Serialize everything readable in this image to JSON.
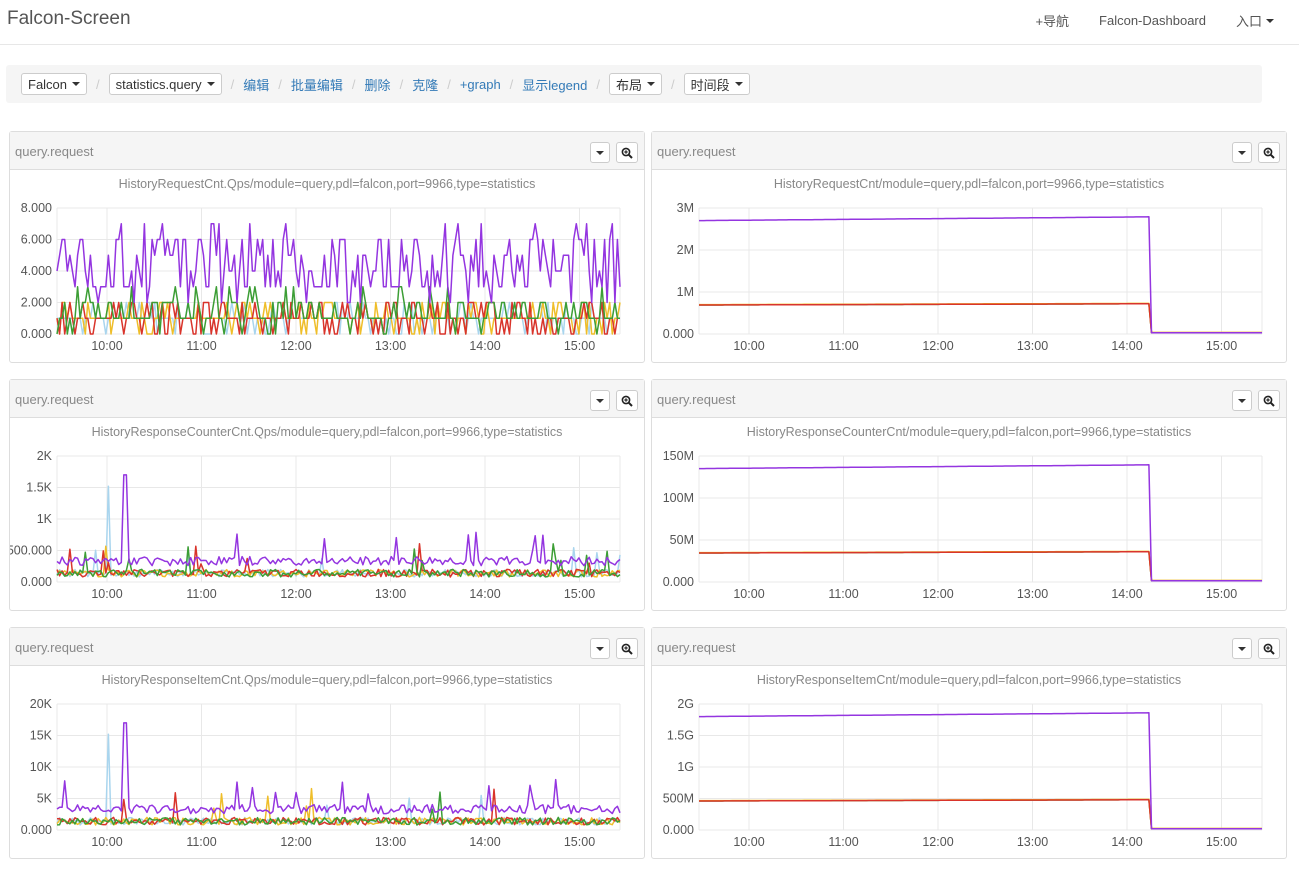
{
  "navbar": {
    "brand": "Falcon-Screen",
    "links": [
      "+导航",
      "Falcon-Dashboard",
      "入口"
    ]
  },
  "toolbar": {
    "dropdown_screen": "Falcon",
    "dropdown_sub": "statistics.query",
    "links": [
      "编辑",
      "批量编辑",
      "删除",
      "克隆",
      "+graph",
      "显示legend"
    ],
    "dropdown_layout": "布局",
    "dropdown_time": "时间段"
  },
  "colors": {
    "purple": "#9435e0",
    "red": "#d9342b",
    "green": "#3c9e35",
    "yellow": "#efbe2a",
    "lightblue": "#a9d5ee",
    "grid": "#e8e8e8",
    "link": "#337ab7"
  },
  "icons": {
    "panel_menu": "caret-down-icon",
    "panel_zoom": "zoom-in-icon"
  },
  "panels": [
    {
      "header": "query.request",
      "title": "HistoryRequestCnt.Qps/module=query,pdl=falcon,port=9966,type=statistics",
      "yticks": [
        "8.000",
        "6.000",
        "4.000",
        "2.000",
        "0.000"
      ],
      "xticks": [
        "10:00",
        "11:00",
        "12:00",
        "13:00",
        "14:00",
        "15:00"
      ]
    },
    {
      "header": "query.request",
      "title": "HistoryRequestCnt/module=query,pdl=falcon,port=9966,type=statistics",
      "yticks": [
        "3M",
        "2M",
        "1M",
        "0.000"
      ],
      "xticks": [
        "10:00",
        "11:00",
        "12:00",
        "13:00",
        "14:00",
        "15:00"
      ]
    },
    {
      "header": "query.request",
      "title": "HistoryResponseCounterCnt.Qps/module=query,pdl=falcon,port=9966,type=statistics",
      "yticks": [
        "2K",
        "1.5K",
        "1K",
        "500.000",
        "0.000"
      ],
      "xticks": [
        "10:00",
        "11:00",
        "12:00",
        "13:00",
        "14:00",
        "15:00"
      ]
    },
    {
      "header": "query.request",
      "title": "HistoryResponseCounterCnt/module=query,pdl=falcon,port=9966,type=statistics",
      "yticks": [
        "150M",
        "100M",
        "50M",
        "0.000"
      ],
      "xticks": [
        "10:00",
        "11:00",
        "12:00",
        "13:00",
        "14:00",
        "15:00"
      ]
    },
    {
      "header": "query.request",
      "title": "HistoryResponseItemCnt.Qps/module=query,pdl=falcon,port=9966,type=statistics",
      "yticks": [
        "20K",
        "15K",
        "10K",
        "5K",
        "0.000"
      ],
      "xticks": [
        "10:00",
        "11:00",
        "12:00",
        "13:00",
        "14:00",
        "15:00"
      ]
    },
    {
      "header": "query.request",
      "title": "HistoryResponseItemCnt/module=query,pdl=falcon,port=9966,type=statistics",
      "yticks": [
        "2G",
        "1.5G",
        "1G",
        "500M",
        "0.000"
      ],
      "xticks": [
        "10:00",
        "11:00",
        "12:00",
        "13:00",
        "14:00",
        "15:00"
      ]
    }
  ]
}
